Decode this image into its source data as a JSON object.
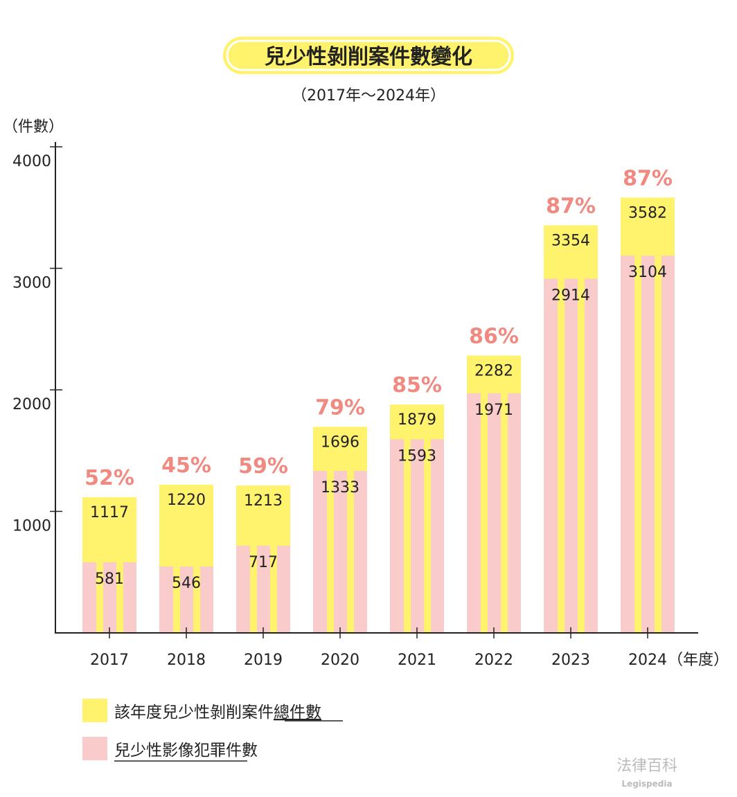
{
  "chart_data": {
    "type": "bar",
    "title": "兒少性剝削案件數變化",
    "subtitle": "（2017年～2024年）",
    "ylabel": "（件數）",
    "xlabel": "（年度）",
    "ylim": [
      0,
      4000
    ],
    "yticks": [
      "1000",
      "2000",
      "3000",
      "4000"
    ],
    "categories": [
      "2017",
      "2018",
      "2019",
      "2020",
      "2021",
      "2022",
      "2023",
      "2024"
    ],
    "series": [
      {
        "name": "該年度兒少性剝削案件總件數",
        "color": "#FFF36E",
        "values": [
          1117,
          1220,
          1213,
          1696,
          1879,
          2282,
          3354,
          3582
        ]
      },
      {
        "name": "兒少性影像犯罪件數",
        "color": "#F9CBCB",
        "values": [
          581,
          546,
          717,
          1333,
          1593,
          1971,
          2914,
          3104
        ]
      }
    ],
    "percent_labels": [
      "52%",
      "45%",
      "59%",
      "79%",
      "85%",
      "86%",
      "87%",
      "87%"
    ],
    "percent_color": "#F08A80",
    "legend": {
      "placement": "bottom-left",
      "items": [
        {
          "parts": [
            "該年度兒少性剝削案件",
            "總件數"
          ]
        },
        {
          "parts": [
            "兒少性影像犯罪",
            "件數"
          ]
        }
      ]
    },
    "grid": false
  },
  "watermark": {
    "name": "法律百科",
    "sub": "Legispedia"
  }
}
